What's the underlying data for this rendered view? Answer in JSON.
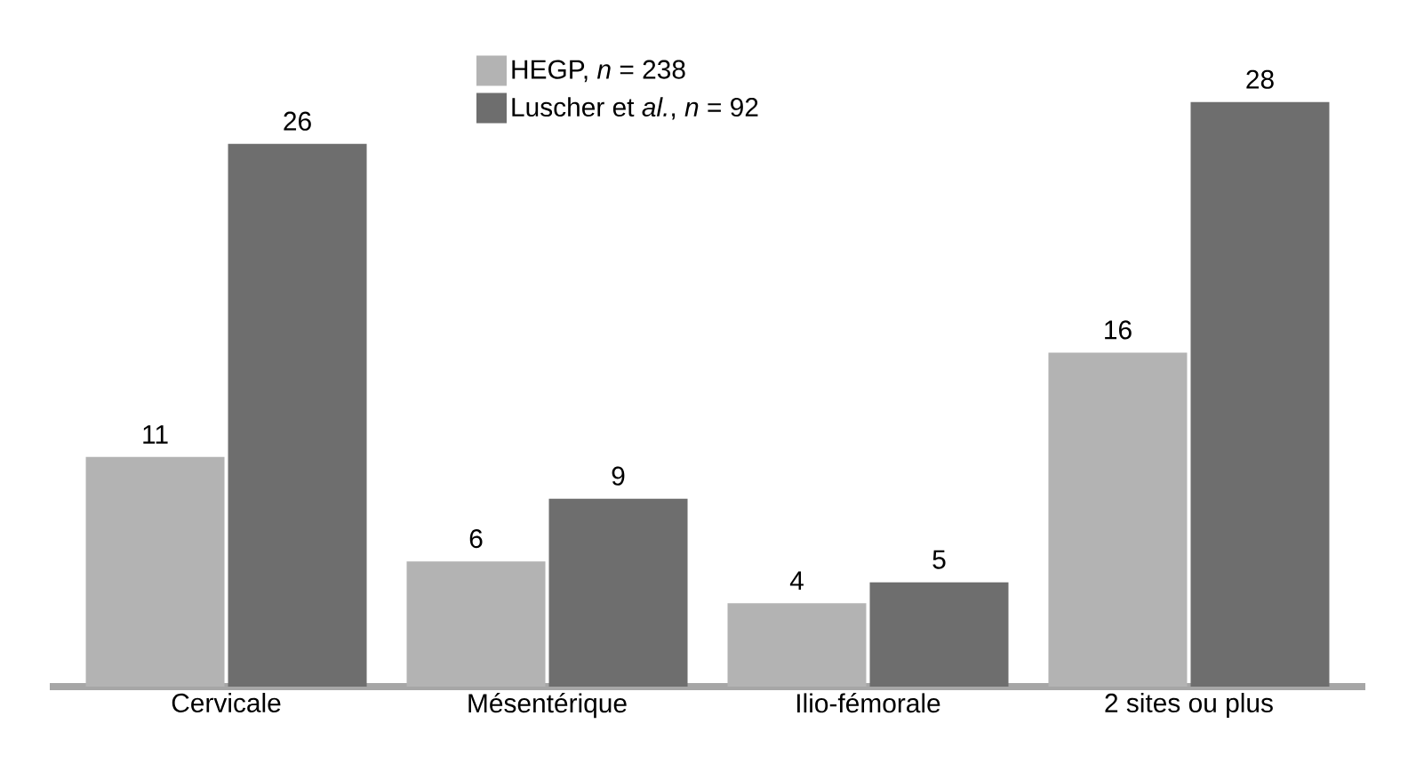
{
  "chart_data": {
    "type": "bar",
    "categories": [
      "Cervicale",
      "Mésentérique",
      "Ilio-fémorale",
      "2 sites ou plus"
    ],
    "series": [
      {
        "name": "HEGP, *n* = 238",
        "color": "#b3b3b3",
        "values": [
          11,
          6,
          4,
          16
        ]
      },
      {
        "name": "Luscher et *al.*, *n* = 92",
        "color": "#6e6e6e",
        "values": [
          26,
          9,
          5,
          28
        ]
      }
    ],
    "data_labels": true,
    "legend": "top"
  }
}
